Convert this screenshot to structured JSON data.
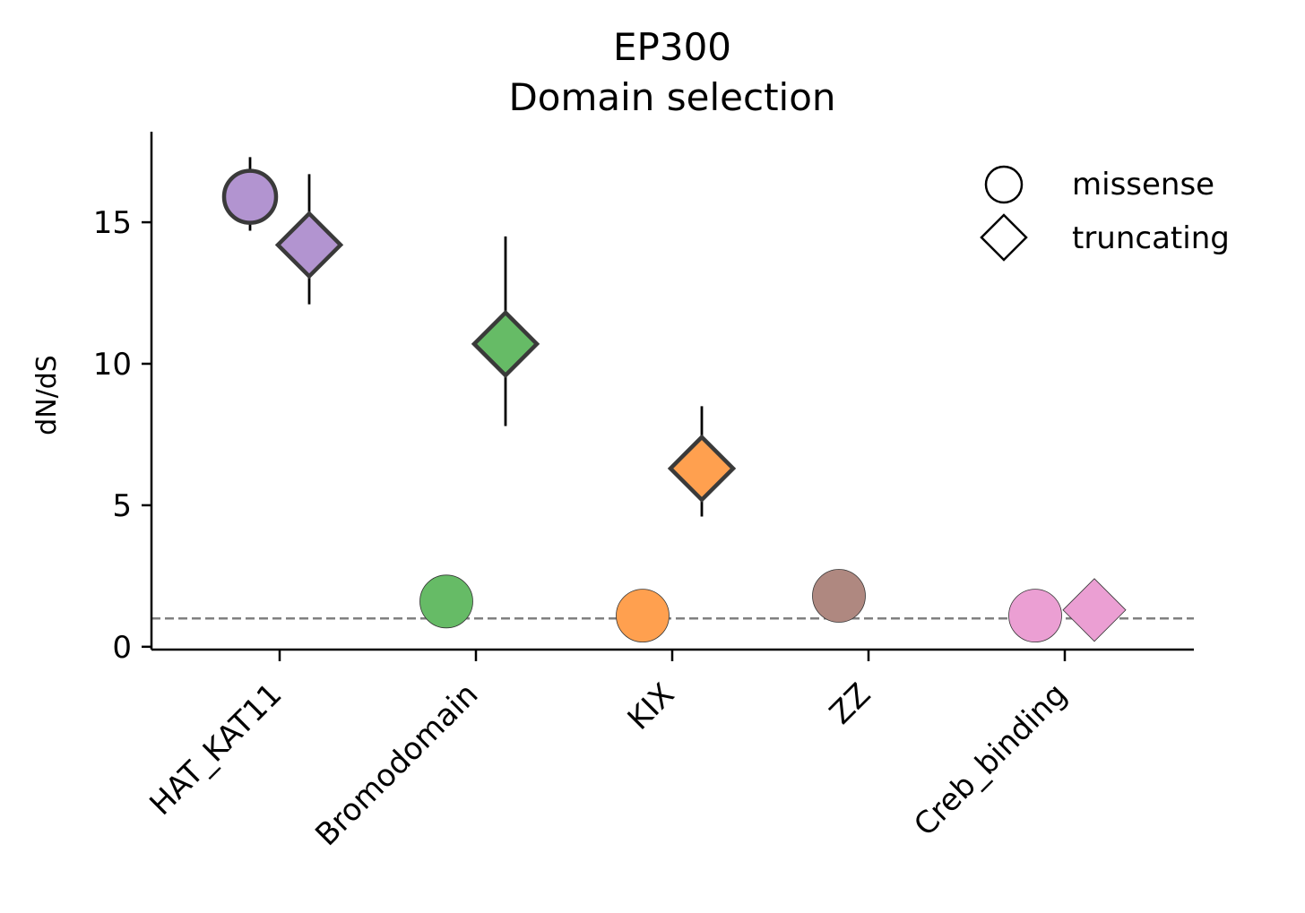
{
  "chart_data": {
    "type": "scatter",
    "title_lines": [
      "EP300",
      "Domain selection"
    ],
    "xlabel": "",
    "ylabel": "dN/dS",
    "categories": [
      "HAT_KAT11",
      "Bromodomain",
      "KIX",
      "ZZ",
      "Creb_binding"
    ],
    "yticks": [
      "0",
      "5",
      "10",
      "15"
    ],
    "ytick_values": [
      0,
      5,
      10,
      15
    ],
    "ylim": [
      -0.1,
      18.2
    ],
    "reference_line": 1,
    "grid": false,
    "legend_placement": "top-right",
    "legend": [
      {
        "label": "missense",
        "marker": "circle"
      },
      {
        "label": "truncating",
        "marker": "diamond"
      }
    ],
    "category_colors": [
      "#b294d0",
      "#66bb66",
      "#ffa04f",
      "#af8880",
      "#eb9fd3"
    ],
    "series": [
      {
        "marker": "circle",
        "points": [
          {
            "category": "HAT_KAT11",
            "value": 15.9,
            "ci": [
              14.7,
              17.3
            ],
            "significant": true
          },
          {
            "category": "Bromodomain",
            "value": 1.6,
            "ci": null,
            "significant": false
          },
          {
            "category": "KIX",
            "value": 1.1,
            "ci": null,
            "significant": false
          },
          {
            "category": "ZZ",
            "value": 1.8,
            "ci": null,
            "significant": false
          },
          {
            "category": "Creb_binding",
            "value": 1.1,
            "ci": null,
            "significant": false
          }
        ]
      },
      {
        "marker": "diamond",
        "points": [
          {
            "category": "HAT_KAT11",
            "value": 14.2,
            "ci": [
              12.1,
              16.7
            ],
            "significant": true
          },
          {
            "category": "Bromodomain",
            "value": 10.7,
            "ci": [
              7.8,
              14.5
            ],
            "significant": true
          },
          {
            "category": "KIX",
            "value": 6.3,
            "ci": [
              4.6,
              8.5
            ],
            "significant": true
          },
          {
            "category": "Creb_binding",
            "value": 1.3,
            "ci": null,
            "significant": false
          }
        ]
      }
    ]
  }
}
